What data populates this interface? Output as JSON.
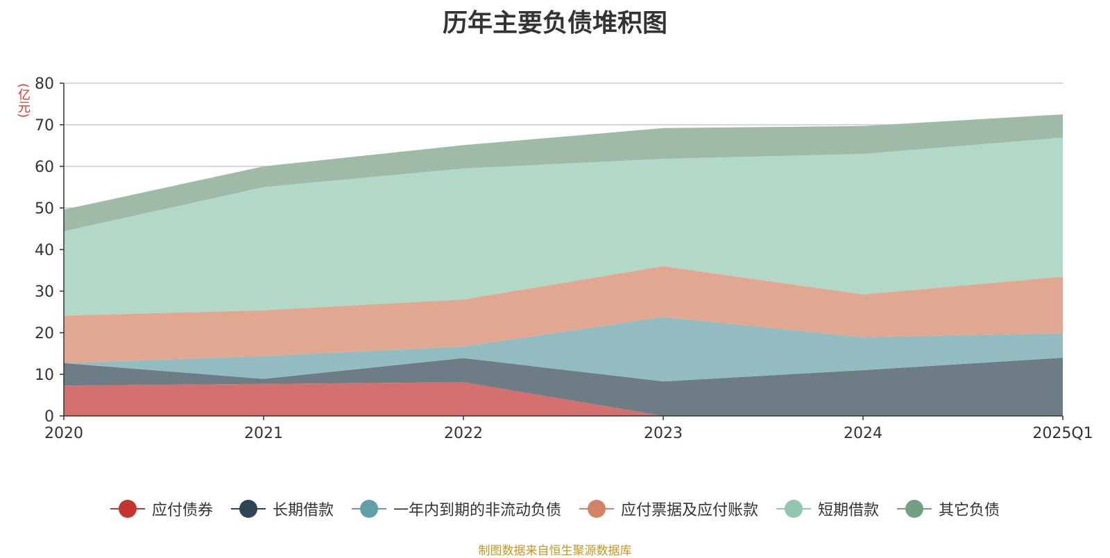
{
  "title": "历年主要负债堆积图",
  "unit": "(亿元)",
  "source": "制图数据来自恒生聚源数据库",
  "chart_data": {
    "type": "area",
    "stacked": true,
    "categories": [
      "2020",
      "2021",
      "2022",
      "2023",
      "2024",
      "2025Q1"
    ],
    "ylim": [
      0,
      80
    ],
    "yticks": [
      0,
      10,
      20,
      30,
      40,
      50,
      60,
      70,
      80
    ],
    "grid": true,
    "legend_position": "bottom",
    "series": [
      {
        "name": "应付债券",
        "color": "#c23531",
        "fill": "#d4706d",
        "values": [
          7.3,
          7.7,
          8.1,
          0.0,
          0.0,
          0.0
        ]
      },
      {
        "name": "长期借款",
        "color": "#2f4554",
        "fill": "#6e7c86",
        "values": [
          5.4,
          1.2,
          5.8,
          8.3,
          11.0,
          14.0
        ]
      },
      {
        "name": "一年内到期的非流动负债",
        "color": "#61a0a8",
        "fill": "#92bcc2",
        "values": [
          0.0,
          5.5,
          2.8,
          15.5,
          7.9,
          5.9
        ]
      },
      {
        "name": "应付票据及应付账款",
        "color": "#d48265",
        "fill": "#e2a791",
        "values": [
          11.4,
          11.0,
          11.3,
          12.2,
          10.3,
          13.6
        ]
      },
      {
        "name": "短期借款",
        "color": "#91c7ae",
        "fill": "#b2d9c7",
        "values": [
          20.3,
          29.6,
          31.5,
          25.8,
          33.8,
          33.4
        ]
      },
      {
        "name": "其它负债",
        "color": "#749f83",
        "fill": "#9fbba7",
        "values": [
          5.2,
          5.0,
          5.6,
          7.4,
          6.7,
          5.6
        ]
      }
    ]
  }
}
